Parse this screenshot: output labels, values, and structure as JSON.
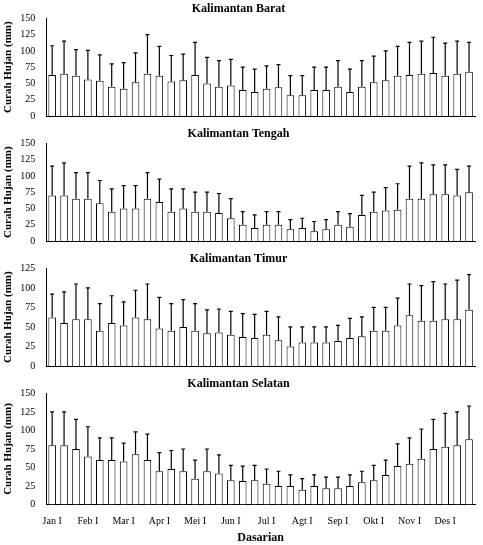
{
  "chart_data": [
    {
      "type": "bar",
      "title": "Kalimantan Barat",
      "ylabel": "Curah Hujan (mm)",
      "categories": [
        "Jan I",
        null,
        null,
        "Feb I",
        null,
        null,
        "Mar I",
        null,
        null,
        "Apr I",
        null,
        null,
        "Mei I",
        null,
        null,
        "Jun I",
        null,
        null,
        "Jul I",
        null,
        null,
        "Agt I",
        null,
        null,
        "Sep I",
        null,
        null,
        "Okt I",
        null,
        null,
        "Nov I",
        null,
        null,
        "Des I",
        null,
        null
      ],
      "values": [
        63,
        65,
        62,
        56,
        54,
        45,
        42,
        52,
        65,
        62,
        53,
        55,
        63,
        50,
        45,
        47,
        40,
        37,
        42,
        44,
        32,
        32,
        40,
        40,
        45,
        37,
        45,
        52,
        55,
        62,
        63,
        65,
        66,
        62,
        65,
        68
      ],
      "error": [
        45,
        50,
        40,
        45,
        40,
        35,
        40,
        45,
        60,
        45,
        40,
        40,
        50,
        40,
        40,
        40,
        35,
        35,
        35,
        35,
        30,
        30,
        35,
        35,
        40,
        35,
        40,
        40,
        45,
        45,
        50,
        50,
        55,
        50,
        50,
        45
      ],
      "color": "#ffffff",
      "ylim": [
        0,
        150
      ],
      "yticks": [
        0,
        25,
        50,
        75,
        100,
        125,
        150
      ],
      "grid": false,
      "tick_labels": "y"
    },
    {
      "type": "bar",
      "title": "Kalimantan Tengah",
      "ylabel": "Curah Hujan (mm)",
      "categories": [
        "Jan I",
        null,
        null,
        "Feb I",
        null,
        null,
        "Mar I",
        null,
        null,
        "Apr I",
        null,
        null,
        "Mei I",
        null,
        null,
        "Jun I",
        null,
        null,
        "Jul I",
        null,
        null,
        "Agt I",
        null,
        null,
        "Sep I",
        null,
        null,
        "Okt I",
        null,
        null,
        "Nov I",
        null,
        null,
        "Des I",
        null,
        null
      ],
      "values": [
        70,
        70,
        65,
        65,
        58,
        45,
        50,
        50,
        65,
        60,
        45,
        50,
        45,
        45,
        43,
        35,
        25,
        20,
        25,
        25,
        18,
        20,
        15,
        18,
        25,
        22,
        40,
        45,
        47,
        48,
        65,
        65,
        72,
        72,
        70,
        75
      ],
      "error": [
        45,
        50,
        40,
        40,
        35,
        35,
        35,
        35,
        40,
        35,
        35,
        30,
        30,
        30,
        30,
        30,
        20,
        20,
        20,
        20,
        15,
        15,
        15,
        15,
        20,
        20,
        30,
        30,
        35,
        40,
        50,
        55,
        45,
        45,
        40,
        40
      ],
      "color": "#ffffff",
      "ylim": [
        0,
        150
      ],
      "yticks": [
        0,
        25,
        50,
        75,
        100,
        125,
        150
      ],
      "grid": false,
      "tick_labels": "y"
    },
    {
      "type": "bar",
      "title": "Kalimantan Timur",
      "ylabel": "Curah Hujan (mm)",
      "categories": [
        "Jan I",
        null,
        null,
        "Feb I",
        null,
        null,
        "Mar I",
        null,
        null,
        "Apr I",
        null,
        null,
        "Mei I",
        null,
        null,
        "Jun I",
        null,
        null,
        "Jul I",
        null,
        null,
        "Agt I",
        null,
        null,
        "Sep I",
        null,
        null,
        "Okt I",
        null,
        null,
        "Nov I",
        null,
        null,
        "Des I",
        null,
        null
      ],
      "values": [
        62,
        55,
        60,
        60,
        45,
        55,
        52,
        62,
        60,
        48,
        45,
        50,
        45,
        42,
        43,
        40,
        37,
        36,
        40,
        33,
        25,
        30,
        30,
        30,
        32,
        36,
        38,
        45,
        45,
        52,
        65,
        58,
        58,
        60,
        60,
        72
      ],
      "error": [
        30,
        40,
        45,
        40,
        35,
        35,
        30,
        35,
        45,
        40,
        35,
        35,
        35,
        30,
        30,
        30,
        30,
        30,
        30,
        30,
        25,
        20,
        20,
        20,
        20,
        25,
        25,
        30,
        30,
        35,
        40,
        45,
        50,
        45,
        50,
        45
      ],
      "color": "#ffffff",
      "ylim": [
        0,
        125
      ],
      "yticks": [
        0,
        25,
        50,
        75,
        100,
        125
      ],
      "grid": false,
      "tick_labels": "y"
    },
    {
      "type": "bar",
      "title": "Kalimantan Selatan",
      "ylabel": "Curah Hujan (mm)",
      "xlabel": "Dasarian",
      "categories": [
        "Jan I",
        null,
        null,
        "Feb I",
        null,
        null,
        "Mar I",
        null,
        null,
        "Apr I",
        null,
        null,
        "Mei I",
        null,
        null,
        "Jun I",
        null,
        null,
        "Jul I",
        null,
        null,
        "Agt I",
        null,
        null,
        "Sep I",
        null,
        null,
        "Okt I",
        null,
        null,
        "Nov I",
        null,
        null,
        "Des I",
        null,
        null
      ],
      "values": [
        80,
        80,
        75,
        65,
        60,
        60,
        58,
        68,
        60,
        45,
        48,
        45,
        35,
        45,
        42,
        33,
        32,
        33,
        28,
        25,
        25,
        20,
        25,
        22,
        22,
        25,
        30,
        33,
        40,
        52,
        55,
        62,
        75,
        78,
        80,
        88
      ],
      "error": [
        45,
        45,
        40,
        40,
        30,
        30,
        25,
        30,
        35,
        25,
        25,
        30,
        25,
        30,
        25,
        20,
        20,
        20,
        20,
        20,
        15,
        15,
        15,
        15,
        15,
        15,
        15,
        20,
        20,
        30,
        35,
        40,
        40,
        45,
        45,
        45
      ],
      "color": "#ffffff",
      "ylim": [
        0,
        150
      ],
      "yticks": [
        0,
        25,
        50,
        75,
        100,
        125,
        150
      ],
      "grid": false
    }
  ]
}
